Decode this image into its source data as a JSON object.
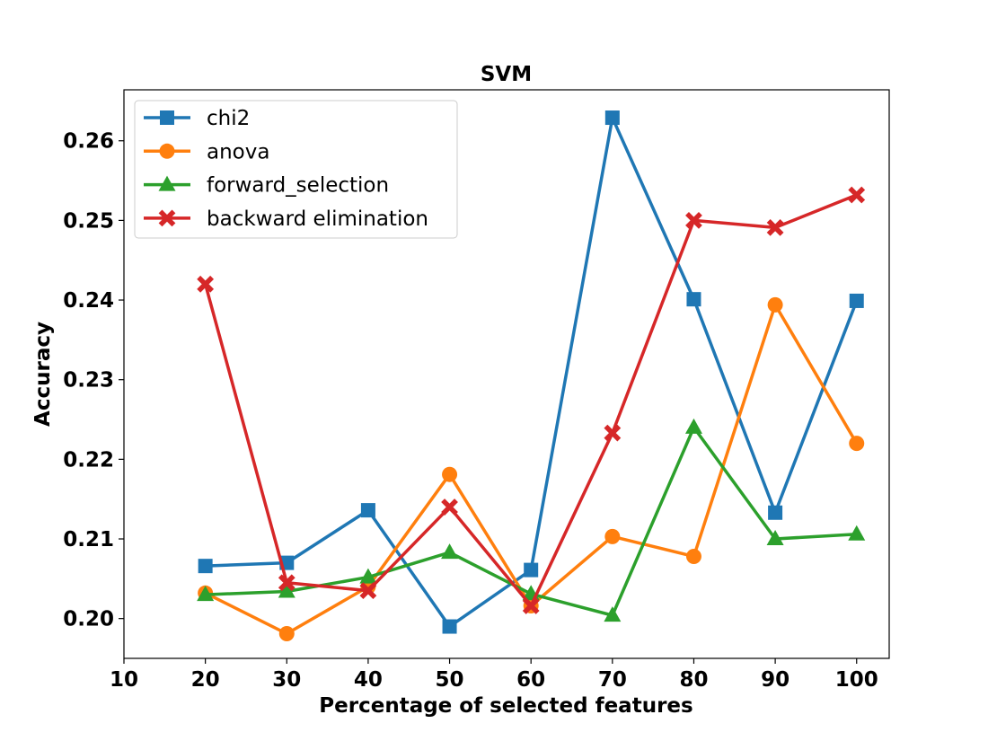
{
  "chart_data": {
    "type": "line",
    "title": "SVM",
    "xlabel": "Percentage of selected features",
    "ylabel": "Accuracy",
    "xlim": [
      10,
      104
    ],
    "ylim": [
      0.195,
      0.2664
    ],
    "xticks": [
      10,
      20,
      30,
      40,
      50,
      60,
      70,
      80,
      90,
      100
    ],
    "yticks": [
      0.2,
      0.21,
      0.22,
      0.23,
      0.24,
      0.25,
      0.26
    ],
    "ytick_labels": [
      "0.20",
      "0.21",
      "0.22",
      "0.23",
      "0.24",
      "0.25",
      "0.26"
    ],
    "x": [
      20,
      30,
      40,
      50,
      60,
      70,
      80,
      90,
      100
    ],
    "legend_position": "top-left",
    "grid": false,
    "series": [
      {
        "name": "chi2",
        "color": "#1f77b4",
        "marker": "square",
        "values": [
          0.2066,
          0.207,
          0.2136,
          0.199,
          0.2061,
          0.2629,
          0.2401,
          0.2133,
          0.2399
        ]
      },
      {
        "name": "anova",
        "color": "#ff7f0e",
        "marker": "circle",
        "values": [
          0.2032,
          0.1981,
          0.204,
          0.2181,
          0.2016,
          0.2103,
          0.2078,
          0.2394,
          0.222
        ]
      },
      {
        "name": "forward_selection",
        "color": "#2ca02c",
        "marker": "triangle",
        "values": [
          0.203,
          0.2034,
          0.2052,
          0.2083,
          0.2031,
          0.2004,
          0.224,
          0.21,
          0.2106
        ]
      },
      {
        "name": "backward elimination",
        "color": "#d62728",
        "marker": "x",
        "values": [
          0.242,
          0.2045,
          0.2035,
          0.214,
          0.2016,
          0.2233,
          0.25,
          0.2491,
          0.2532
        ]
      }
    ]
  }
}
